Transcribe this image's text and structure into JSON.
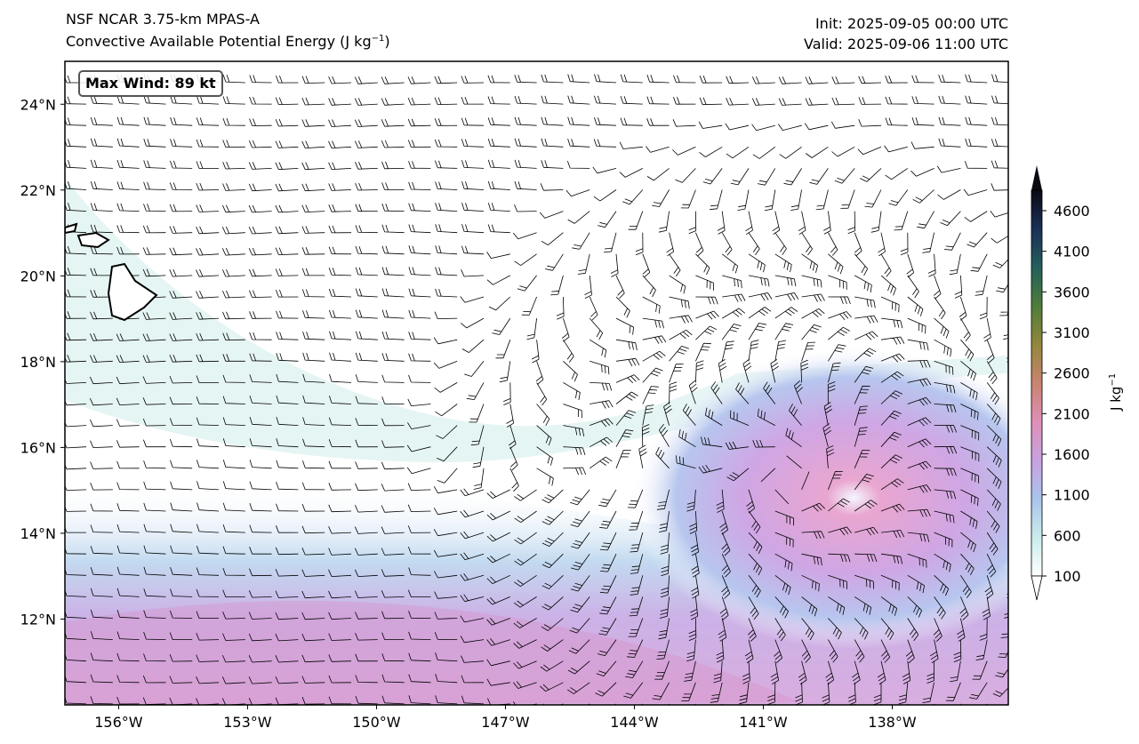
{
  "header": {
    "model": "NSF NCAR 3.75-km MPAS-A",
    "field_name": "Convective Available Potential Energy",
    "field_units": "(J kg",
    "field_units_exp": "−1",
    "field_units_close": ")",
    "init": "Init: 2025-09-05 00:00 UTC",
    "valid": "Valid: 2025-09-06 11:00 UTC"
  },
  "annotation": {
    "max_wind": "Max Wind: 89 kt"
  },
  "map": {
    "lon_range": [
      -157.25,
      -135.3
    ],
    "lat_range": [
      10.0,
      25.0
    ],
    "lon_ticks": [
      "156°W",
      "153°W",
      "150°W",
      "147°W",
      "144°W",
      "141°W",
      "138°W"
    ],
    "lon_tick_values": [
      -156,
      -153,
      -150,
      -147,
      -144,
      -141,
      -138
    ],
    "lat_ticks": [
      "24°N",
      "22°N",
      "20°N",
      "18°N",
      "16°N",
      "14°N",
      "12°N"
    ],
    "lat_tick_values": [
      24,
      22,
      20,
      18,
      16,
      14,
      12
    ],
    "storm_center": {
      "lon": -140.4,
      "lat": 15.2
    },
    "islands": "Hawaiian Islands"
  },
  "colorbar": {
    "label": "J kg",
    "label_exp": "−1",
    "ticks": [
      "100",
      "600",
      "1100",
      "1600",
      "2100",
      "2600",
      "3100",
      "3600",
      "4100",
      "4600"
    ],
    "tick_values": [
      100,
      600,
      1100,
      1600,
      2100,
      2600,
      3100,
      3600,
      4100,
      4600
    ],
    "range": [
      100,
      5000
    ],
    "colors": [
      "#ffffff",
      "#c9ecec",
      "#a9c3ec",
      "#c9a1e0",
      "#df8fb8",
      "#c98470",
      "#93873c",
      "#4f7d3a",
      "#235f5c",
      "#1a2f58",
      "#0a0a12"
    ]
  },
  "chart_data": {
    "type": "heatmap",
    "title": "Convective Available Potential Energy (J kg−1)",
    "variable": "CAPE",
    "units": "J kg−1",
    "overlay": "wind barbs (kt)",
    "max_wind_kt": 89,
    "colorbar_ticks": [
      100,
      600,
      1100,
      1600,
      2100,
      2600,
      3100,
      3600,
      4100,
      4600
    ],
    "value_range": [
      100,
      5000
    ],
    "features": [
      {
        "name": "tropical cyclone",
        "lon": -140.4,
        "lat": 15.2,
        "cape_peak": 2000
      },
      {
        "name": "southern CAPE band",
        "lat_range": [
          10,
          13
        ],
        "cape_peak": 2000
      }
    ]
  }
}
